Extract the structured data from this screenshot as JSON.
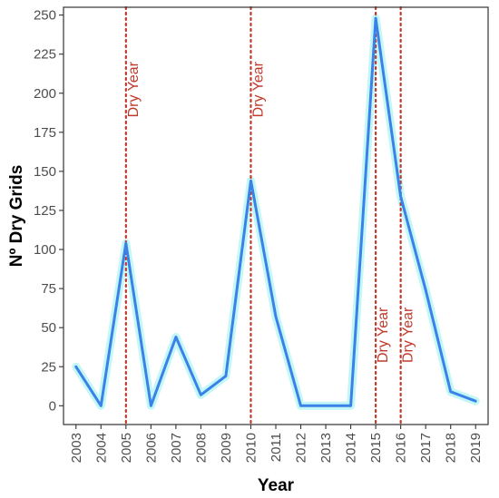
{
  "chart_data": {
    "type": "line",
    "title": "",
    "xlabel": "Year",
    "ylabel": "Nº Dry Grids",
    "x": [
      2003,
      2004,
      2005,
      2006,
      2007,
      2008,
      2009,
      2010,
      2011,
      2012,
      2013,
      2014,
      2015,
      2016,
      2017,
      2018,
      2019
    ],
    "x_tick_labels": [
      "2003",
      "2004",
      "2005",
      "2006",
      "2007",
      "2008",
      "2009",
      "2010",
      "2011",
      "2012",
      "2013",
      "2014",
      "2015",
      "2016",
      "2017",
      "2018",
      "2019"
    ],
    "series": [
      {
        "values": [
          25,
          0,
          104,
          0,
          44,
          7,
          19,
          144,
          57,
          0,
          0,
          0,
          248,
          134,
          74,
          9,
          3
        ]
      }
    ],
    "ylim": [
      -12,
      255
    ],
    "y_ticks": [
      0,
      25,
      50,
      75,
      100,
      125,
      150,
      175,
      200,
      225,
      250
    ],
    "y_tick_labels": [
      "0",
      "25",
      "50",
      "75",
      "100",
      "125",
      "150",
      "175",
      "200",
      "225",
      "250"
    ],
    "xlim": [
      2002.5,
      2019.5
    ],
    "grid": false,
    "annotations": [
      {
        "x": 2005,
        "text": "Dry Year",
        "label_position": "top"
      },
      {
        "x": 2010,
        "text": "Dry Year",
        "label_position": "top"
      },
      {
        "x": 2015,
        "text": "Dry Year",
        "label_position": "bottom"
      },
      {
        "x": 2016,
        "text": "Dry Year",
        "label_position": "bottom"
      }
    ],
    "colors": {
      "line": "#3b82e8",
      "glow": "#b8f5f5",
      "annotation": "#c0392b",
      "panel_border": "#333333"
    }
  }
}
